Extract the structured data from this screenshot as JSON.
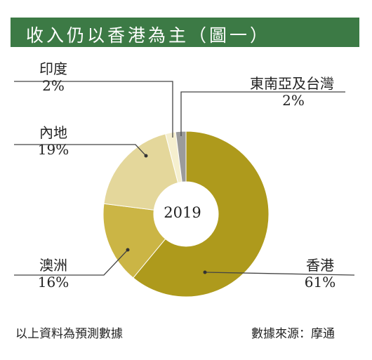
{
  "title": "收入仍以香港為主（圖一）",
  "chart_data": {
    "type": "pie",
    "donut": true,
    "center_label": "2019",
    "slices": [
      {
        "name": "香港",
        "value": 61,
        "label": "61%",
        "color": "#ae9a1c"
      },
      {
        "name": "澳洲",
        "value": 16,
        "label": "16%",
        "color": "#cbb545"
      },
      {
        "name": "內地",
        "value": 19,
        "label": "19%",
        "color": "#e4d79b"
      },
      {
        "name": "印度",
        "value": 2,
        "label": "2%",
        "color": "#f5efcf"
      },
      {
        "name": "東南亞及台灣",
        "value": 2,
        "label": "2%",
        "color": "#9b9b9b"
      }
    ]
  },
  "footnote_left": "以上資料為預測數據",
  "footnote_right": "數據來源：摩通"
}
